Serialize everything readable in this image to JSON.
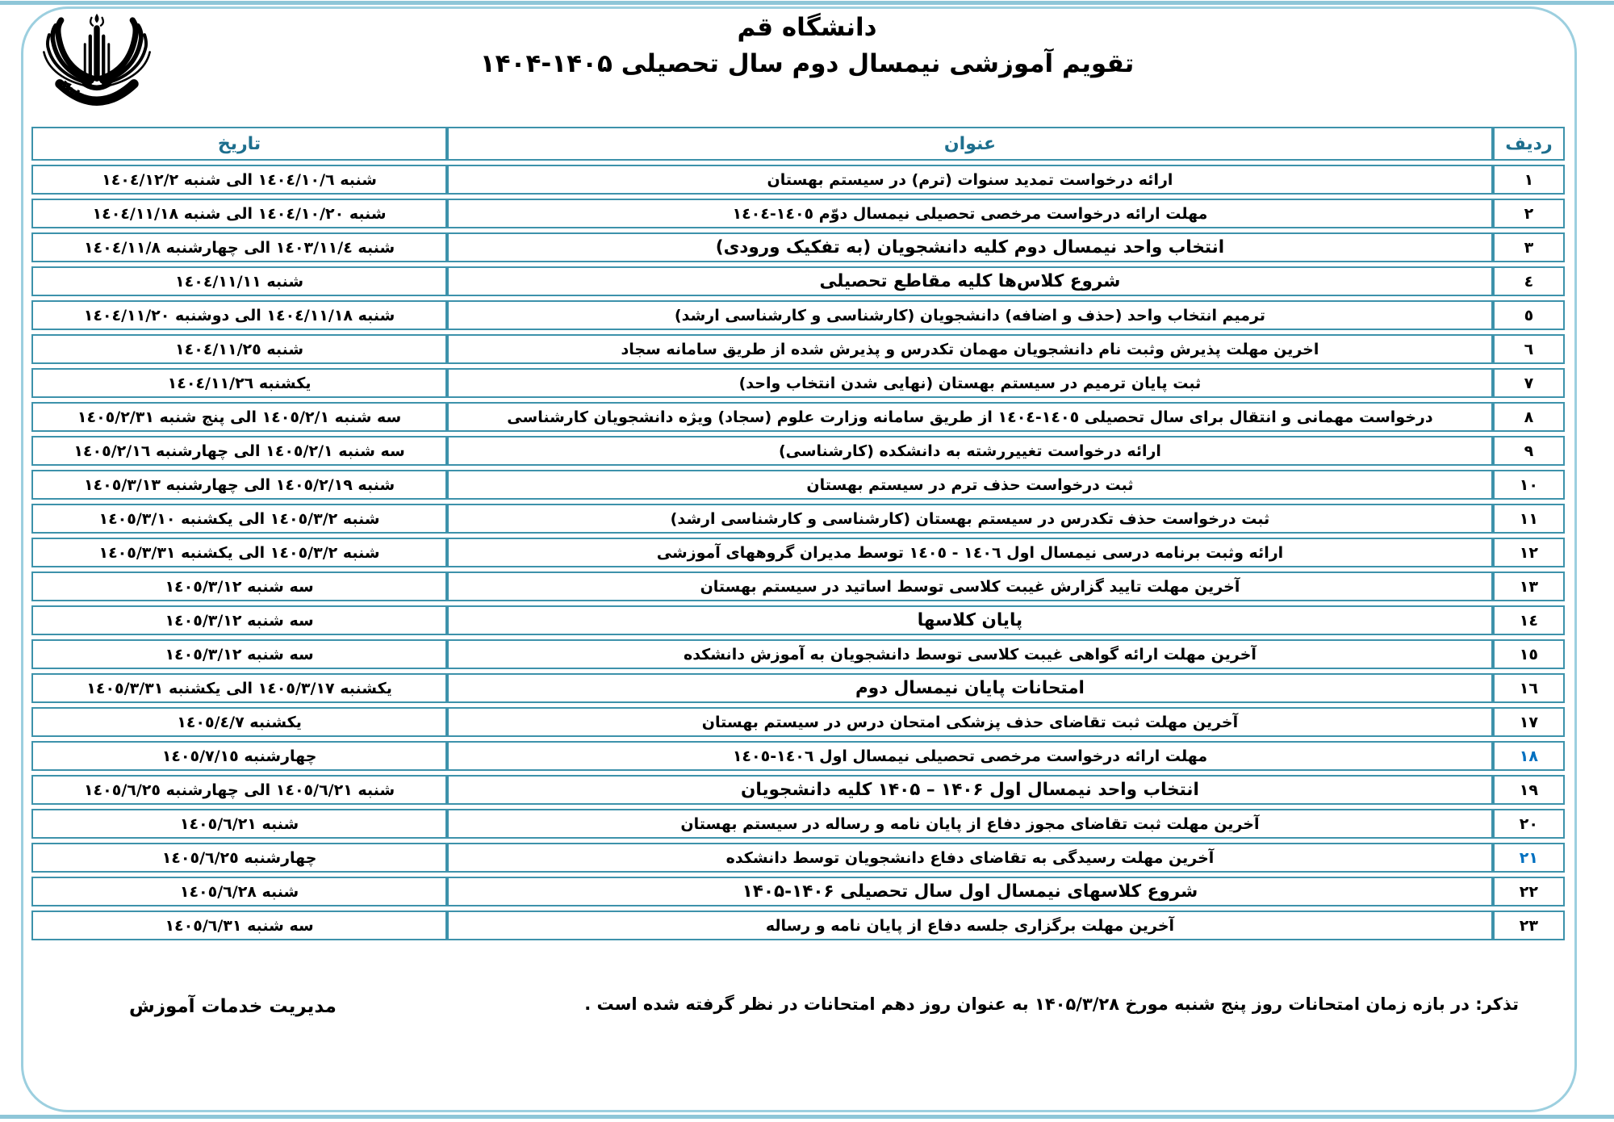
{
  "page": {
    "title": "دانشگاه قم",
    "subtitle": "تقویم آموزشی نیمسال دوم سال تحصیلی ۱۴۰۵-۱۴۰۴",
    "note": "تذکر:  در بازه زمان امتحانات روز  پنج شنبه مورخ ۱۴۰۵/۳/۲۸  به عنوان روز دهم امتحانات در نظر گرفته شده است .",
    "signature": "مدیریت خدمات آموزش",
    "logo_name": "university-of-qom-emblem"
  },
  "colors": {
    "table_border": "#3d92ab",
    "header_text": "#1e6f8e",
    "frame": "#9ccfdf",
    "edge_line": "#8ec6d8",
    "accent_blue_row_number": "#0070c0"
  },
  "table": {
    "headers": {
      "date": "تاریخ",
      "title": "عنوان",
      "row": "ردیف"
    },
    "rows": [
      {
        "num": "١",
        "title": "ارائه درخواست تمدید سنوات (ترم) در سیستم بهستان",
        "date": "شنبه ١٤٠٤/١٠/٦ الی شنبه ١٤٠٤/١٢/٢",
        "strong": false,
        "blue": false
      },
      {
        "num": "٢",
        "title": "مهلت ارائه درخواست مرخصی تحصیلی نیمسال دوّم ١٤٠٥-١٤٠٤",
        "date": "شنبه ١٤٠٤/١٠/٢٠ الی شنبه ١٤٠٤/١١/١٨",
        "strong": false,
        "blue": false
      },
      {
        "num": "٣",
        "title": "انتخاب واحد نیمسال دوم کلیه دانشجویان (به تفکیک ورودی)",
        "date": "شنبه ١٤٠٣/١١/٤ الی چهارشنبه ١٤٠٤/١١/٨",
        "strong": true,
        "blue": false
      },
      {
        "num": "٤",
        "title": "شروع کلاس‌ها کلیه مقاطع تحصیلی",
        "date": "شنبه ١٤٠٤/١١/١١",
        "strong": true,
        "blue": false
      },
      {
        "num": "٥",
        "title": "ترمیم انتخاب واحد (حذف و اضافه) دانشجویان (کارشناسی و کارشناسی ارشد)",
        "date": "شنبه ١٤٠٤/١١/١٨ الی دوشنبه ١٤٠٤/١١/٢٠",
        "strong": false,
        "blue": false
      },
      {
        "num": "٦",
        "title": "اخرین مهلت پذیرش وثبت نام دانشجویان مهمان تکدرس  و پذیرش شده از طریق سامانه سجاد",
        "date": "شنبه ١٤٠٤/١١/٢٥",
        "strong": false,
        "blue": false
      },
      {
        "num": "٧",
        "title": "ثبت پایان ترمیم در سیستم بهستان (نهایی شدن انتخاب واحد)",
        "date": "یکشنبه ١٤٠٤/١١/٢٦",
        "strong": false,
        "blue": false
      },
      {
        "num": "٨",
        "title": "درخواست مهمانی و انتقال برای سال تحصیلی ١٤٠٥-١٤٠٤ از طریق سامانه وزارت علوم (سجاد) ویژه دانشجویان کارشناسی",
        "date": "سه شنبه ١٤٠٥/٢/١ الی پنج شنبه ١٤٠٥/٢/٣١",
        "strong": false,
        "blue": false
      },
      {
        "num": "٩",
        "title": "ارائه درخواست تغییررشته به دانشکده (کارشناسی)",
        "date": "سه شنبه ١٤٠٥/٢/١ الی چهارشنبه ١٤٠٥/٢/١٦",
        "strong": false,
        "blue": false
      },
      {
        "num": "١٠",
        "title": "ثبت درخواست حذف ترم در سیستم بهستان",
        "date": "شنبه ١٤٠٥/٢/١٩ الی چهارشنبه ١٤٠٥/٣/١٣",
        "strong": false,
        "blue": false
      },
      {
        "num": "١١",
        "title": "ثبت درخواست حذف تکدرس در سیستم بهستان (کارشناسی و کارشناسی ارشد)",
        "date": "شنبه ١٤٠٥/٣/٢ الی یکشنبه ١٤٠٥/٣/١٠",
        "strong": false,
        "blue": false
      },
      {
        "num": "١٢",
        "title": "ارائه وثبت  برنامه درسی نیمسال اول ١٤٠٦ - ١٤٠٥  توسط مدیران گروههای آموزشی",
        "date": "شنبه ١٤٠٥/٣/٢ الی یکشنبه ١٤٠٥/٣/٣١",
        "strong": false,
        "blue": false
      },
      {
        "num": "١٣",
        "title": "آخرین مهلت تایید گزارش غیبت کلاسی توسط اساتید در سیستم بهستان",
        "date": "سه شنبه ١٤٠٥/٣/١٢",
        "strong": false,
        "blue": false
      },
      {
        "num": "١٤",
        "title": "پایان کلاسها",
        "date": "سه شنبه ١٤٠٥/٣/١٢",
        "strong": true,
        "blue": false
      },
      {
        "num": "١٥",
        "title": "آخرین مهلت ارائه گواهی غیبت کلاسی توسط دانشجویان به آموزش دانشکده",
        "date": "سه شنبه ١٤٠٥/٣/١٢",
        "strong": false,
        "blue": false
      },
      {
        "num": "١٦",
        "title": "امتحانات پایان نیمسال دوم",
        "date": "یکشنبه ١٤٠٥/٣/١٧ الی یکشنبه ١٤٠٥/٣/٣١",
        "strong": true,
        "blue": false
      },
      {
        "num": "١٧",
        "title": "آخرین مهلت ثبت تقاضای حذف پزشکی امتحان درس در سیستم بهستان",
        "date": "یکشنبه ١٤٠٥/٤/٧",
        "strong": false,
        "blue": false
      },
      {
        "num": "١٨",
        "title": "مهلت ارائه درخواست مرخصی تحصیلی نیمسال اول ١٤٠٦-١٤٠٥",
        "date": "چهارشنبه ١٤٠٥/٧/١٥",
        "strong": false,
        "blue": true
      },
      {
        "num": "١٩",
        "title": "انتخاب واحد نیمسال اول ۱۴۰۶ – ۱۴۰۵ کلیه دانشجویان",
        "date": "شنبه ١٤٠٥/٦/٢١ الی چهارشنبه ١٤٠٥/٦/٢٥",
        "strong": true,
        "blue": false
      },
      {
        "num": "٢٠",
        "title": "آخرین مهلت ثبت تقاضای مجوز دفاع از پایان نامه و رساله در سیستم بهستان",
        "date": "شنبه ١٤٠٥/٦/٢١",
        "strong": false,
        "blue": false
      },
      {
        "num": "٢١",
        "title": "آخرین مهلت رسیدگی به تقاضای دفاع دانشجویان توسط دانشکده",
        "date": "چهارشنبه ١٤٠٥/٦/٢٥",
        "strong": false,
        "blue": true
      },
      {
        "num": "٢٢",
        "title": "شروع کلاسهای نیمسال اول سال تحصیلی ۱۴۰۶-۱۴۰۵",
        "date": "شنبه ١٤٠٥/٦/٢٨",
        "strong": true,
        "blue": false
      },
      {
        "num": "٢٣",
        "title": "آخرین مهلت برگزاری جلسه دفاع از پایان نامه و رساله",
        "date": "سه شنبه ١٤٠٥/٦/٣١",
        "strong": false,
        "blue": false
      }
    ]
  }
}
